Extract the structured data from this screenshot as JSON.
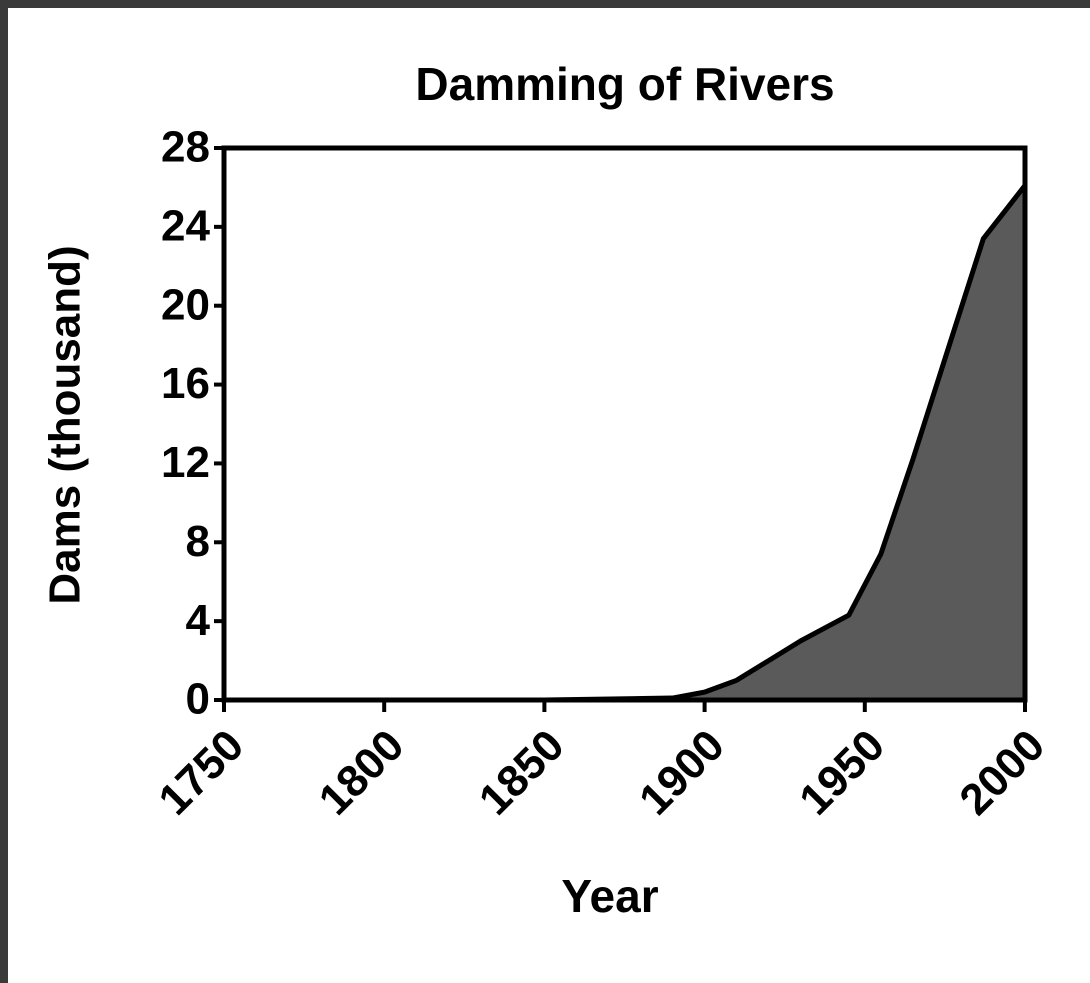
{
  "chart_data": {
    "type": "area",
    "title": "Damming of Rivers",
    "x_label": "Year",
    "y_label": "Dams (thousand)",
    "x": [
      1750,
      1850,
      1890,
      1900,
      1910,
      1920,
      1930,
      1945,
      1955,
      1965,
      1975,
      1987,
      2000
    ],
    "values": [
      0,
      0,
      0.1,
      0.4,
      1,
      2,
      3,
      4.3,
      7.4,
      12.2,
      17.3,
      23.4,
      26.1
    ],
    "color": "#5a5a5a",
    "xlim": [
      1750,
      2000
    ],
    "xticks": [
      1750,
      1800,
      1850,
      1900,
      1950,
      2000
    ],
    "ylim": [
      0,
      28
    ],
    "yticks": [
      0,
      4,
      8,
      12,
      16,
      20,
      24,
      28
    ],
    "grid": false
  }
}
